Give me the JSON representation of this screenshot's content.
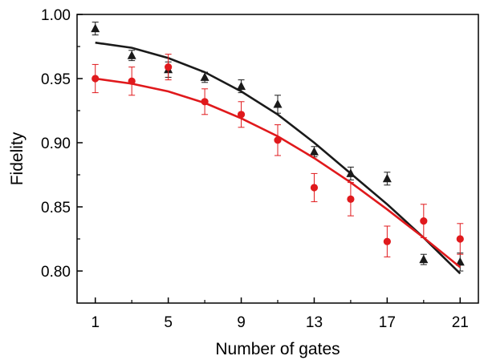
{
  "chart_data": {
    "type": "scatter",
    "title": "",
    "xlabel": "Number of gates",
    "ylabel": "Fidelity",
    "xlim": [
      0,
      22
    ],
    "ylim": [
      0.775,
      1.0
    ],
    "xticks": [
      1,
      5,
      9,
      13,
      17,
      21
    ],
    "xtick_labels": [
      "1",
      "5",
      "9",
      "13",
      "17",
      "21"
    ],
    "yticks": [
      0.8,
      0.85,
      0.9,
      0.95,
      1.0
    ],
    "ytick_labels": [
      "0.80",
      "0.85",
      "0.90",
      "0.95",
      "1.00"
    ],
    "grid": false,
    "legend": "none",
    "series": [
      {
        "marker": "triangle",
        "color": "#1a1a1a",
        "points": [
          {
            "x": 1,
            "y": 0.989,
            "err": 0.005
          },
          {
            "x": 3,
            "y": 0.968,
            "err": 0.004
          },
          {
            "x": 5,
            "y": 0.957,
            "err": 0.006
          },
          {
            "x": 7,
            "y": 0.951,
            "err": 0.004
          },
          {
            "x": 9,
            "y": 0.944,
            "err": 0.005
          },
          {
            "x": 11,
            "y": 0.93,
            "err": 0.007
          },
          {
            "x": 13,
            "y": 0.893,
            "err": 0.004
          },
          {
            "x": 15,
            "y": 0.876,
            "err": 0.005
          },
          {
            "x": 17,
            "y": 0.872,
            "err": 0.005
          },
          {
            "x": 19,
            "y": 0.809,
            "err": 0.004
          },
          {
            "x": 21,
            "y": 0.807,
            "err": 0.007
          }
        ],
        "fit": [
          [
            1,
            0.978
          ],
          [
            3,
            0.974
          ],
          [
            5,
            0.966
          ],
          [
            7,
            0.955
          ],
          [
            9,
            0.94
          ],
          [
            11,
            0.922
          ],
          [
            13,
            0.9
          ],
          [
            15,
            0.876
          ],
          [
            17,
            0.852
          ],
          [
            19,
            0.826
          ],
          [
            21,
            0.798
          ]
        ]
      },
      {
        "marker": "circle",
        "color": "#e0191c",
        "points": [
          {
            "x": 1,
            "y": 0.95,
            "err": 0.011
          },
          {
            "x": 3,
            "y": 0.948,
            "err": 0.011
          },
          {
            "x": 5,
            "y": 0.959,
            "err": 0.01
          },
          {
            "x": 7,
            "y": 0.932,
            "err": 0.01
          },
          {
            "x": 9,
            "y": 0.922,
            "err": 0.01
          },
          {
            "x": 11,
            "y": 0.902,
            "err": 0.012
          },
          {
            "x": 13,
            "y": 0.865,
            "err": 0.011
          },
          {
            "x": 15,
            "y": 0.856,
            "err": 0.013
          },
          {
            "x": 17,
            "y": 0.823,
            "err": 0.012
          },
          {
            "x": 19,
            "y": 0.839,
            "err": 0.013
          },
          {
            "x": 21,
            "y": 0.825,
            "err": 0.012
          }
        ],
        "fit": [
          [
            1,
            0.95
          ],
          [
            3,
            0.946
          ],
          [
            5,
            0.94
          ],
          [
            7,
            0.931
          ],
          [
            9,
            0.919
          ],
          [
            11,
            0.905
          ],
          [
            13,
            0.888
          ],
          [
            15,
            0.869
          ],
          [
            17,
            0.848
          ],
          [
            19,
            0.826
          ],
          [
            21,
            0.803
          ]
        ]
      }
    ]
  }
}
